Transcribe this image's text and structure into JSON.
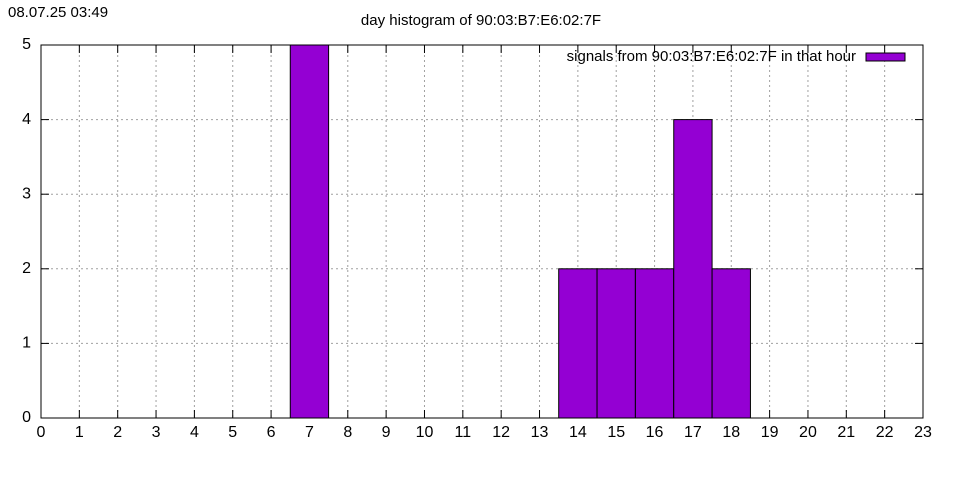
{
  "chart_data": {
    "type": "bar",
    "timestamp": "08.07.25 03:49",
    "title": "day histogram of 90:03:B7:E6:02:7F",
    "x": [
      7,
      14,
      15,
      16,
      17,
      18
    ],
    "series": [
      {
        "name": "signals from 90:03:B7:E6:02:7F in that hour",
        "color": "#9400d3",
        "values": [
          5,
          2,
          2,
          2,
          4,
          2
        ]
      }
    ],
    "xlim": [
      0,
      23
    ],
    "xticks": [
      0,
      1,
      2,
      3,
      4,
      5,
      6,
      7,
      8,
      9,
      10,
      11,
      12,
      13,
      14,
      15,
      16,
      17,
      18,
      19,
      20,
      21,
      22,
      23
    ],
    "ylim": [
      0,
      5
    ],
    "yticks": [
      0,
      1,
      2,
      3,
      4,
      5
    ],
    "grid": true,
    "legend": "top-right"
  }
}
